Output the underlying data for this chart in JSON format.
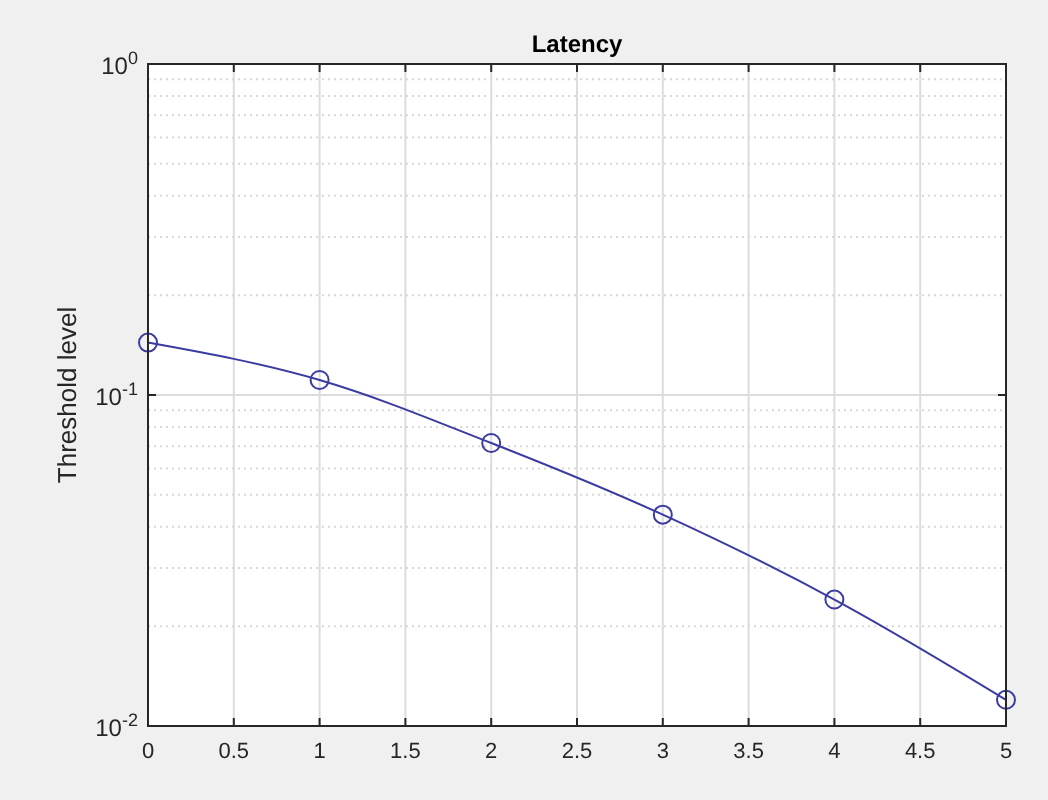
{
  "chart_data": {
    "type": "line",
    "title": "Latency",
    "ylabel": "Threshold level",
    "x": [
      0,
      1,
      2,
      3,
      4,
      5
    ],
    "series": [
      {
        "color": "#3c3ca0",
        "values": [
          0.144,
          0.111,
          0.0716,
          0.0435,
          0.0241,
          0.012
        ]
      }
    ],
    "xlim": [
      0,
      5
    ],
    "xticks": [
      0,
      0.5,
      1,
      1.5,
      2,
      2.5,
      3,
      3.5,
      4,
      4.5,
      5
    ],
    "ylim": [
      0.01,
      1
    ],
    "yticks": [
      {
        "value": 0.01,
        "label": "10$^{-2}$"
      },
      {
        "value": 0.1,
        "label": "10$^{-1}$"
      },
      {
        "value": 1,
        "label": "10$^{0}$"
      }
    ],
    "log": "y",
    "grid": true,
    "marker": "circle",
    "line_style": "solid"
  }
}
